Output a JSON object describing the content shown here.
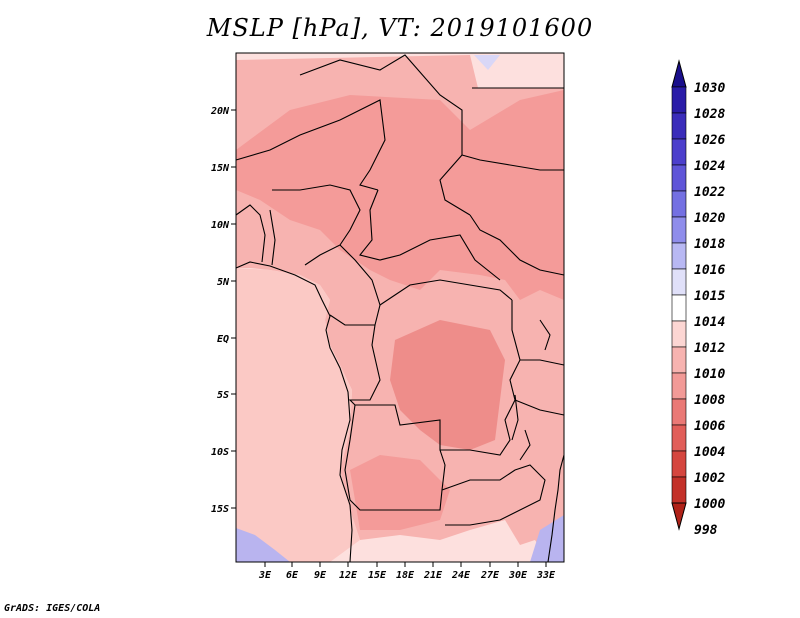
{
  "title": "MSLP [hPa], VT: 2019101600",
  "footer": "GrADS: IGES/COLA",
  "map": {
    "lat_labels": [
      "20N",
      "15N",
      "10N",
      "5N",
      "EQ",
      "5S",
      "10S",
      "15S"
    ],
    "lon_labels": [
      "3E",
      "6E",
      "9E",
      "12E",
      "15E",
      "18E",
      "21E",
      "24E",
      "27E",
      "30E",
      "33E"
    ],
    "colors": {
      "ocean": "#fde0de",
      "land_low": "#f49b99",
      "land_mid": "#f7b3b0",
      "land_high": "#fbc9c5",
      "deep": "#ee8d8a",
      "border": "#000000"
    }
  },
  "colorbar": {
    "labels": [
      "1030",
      "1028",
      "1026",
      "1024",
      "1022",
      "1020",
      "1018",
      "1016",
      "1015",
      "1014",
      "1012",
      "1010",
      "1008",
      "1006",
      "1004",
      "1002",
      "1000",
      "998"
    ],
    "colors": [
      "#1a0f8c",
      "#2a1ca8",
      "#3a2cba",
      "#4c3fcc",
      "#5f55d8",
      "#7470e2",
      "#8f8deb",
      "#b8b8f3",
      "#e0e0f9",
      "#ffffff",
      "#fcd6d3",
      "#f7b3b0",
      "#f29a97",
      "#ea7976",
      "#e15e59",
      "#d5463f",
      "#c33129",
      "#b02218"
    ]
  }
}
